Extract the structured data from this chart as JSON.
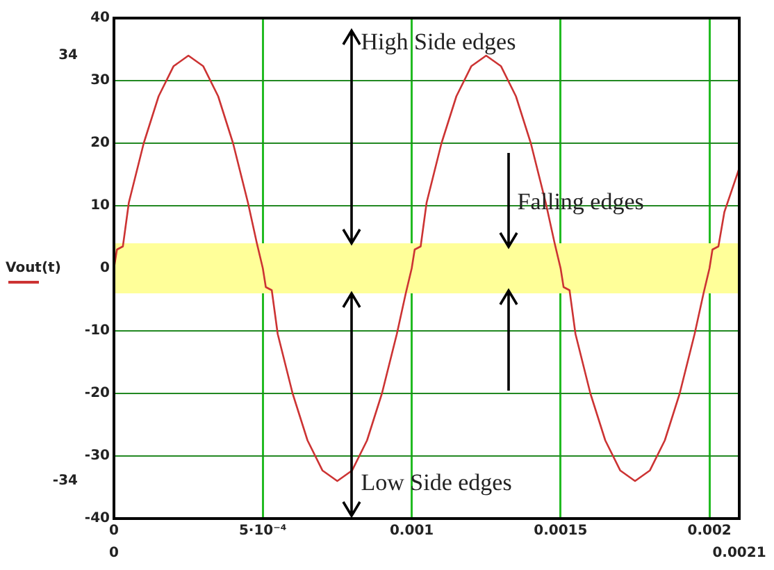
{
  "chart_data": {
    "type": "line",
    "ylabel": "Vout(t)",
    "x": [
      0,
      1e-05,
      3e-05,
      5e-05,
      0.0001,
      0.00015,
      0.0002,
      0.00025,
      0.0003,
      0.00035,
      0.0004,
      0.00045,
      0.00048,
      0.0005,
      0.00051,
      0.00053,
      0.00055,
      0.0006,
      0.00065,
      0.0007,
      0.00075,
      0.0008,
      0.00085,
      0.0009,
      0.00095,
      0.00098,
      0.001,
      0.00101,
      0.00103,
      0.00105,
      0.0011,
      0.00115,
      0.0012,
      0.00125,
      0.0013,
      0.00135,
      0.0014,
      0.00145,
      0.00148,
      0.0015,
      0.00151,
      0.00153,
      0.00155,
      0.0016,
      0.00165,
      0.0017,
      0.00175,
      0.0018,
      0.00185,
      0.0019,
      0.00195,
      0.00198,
      0.002,
      0.00201,
      0.00203,
      0.00205,
      0.0021
    ],
    "series": [
      {
        "color": "#cc3333",
        "values": [
          0,
          3,
          3.5,
          10.5,
          20,
          27.5,
          32.3,
          34,
          32.3,
          27.5,
          20,
          10.5,
          4,
          0,
          -3,
          -3.5,
          -10.5,
          -20,
          -27.5,
          -32.3,
          -34,
          -32.3,
          -27.5,
          -20,
          -10.5,
          -4,
          0,
          3,
          3.5,
          10.5,
          20,
          27.5,
          32.3,
          34,
          32.3,
          27.5,
          20,
          10.5,
          4,
          0,
          -3,
          -3.5,
          -10.5,
          -20,
          -27.5,
          -32.3,
          -34,
          -32.3,
          -27.5,
          -20,
          -10.5,
          -4,
          0,
          3,
          3.5,
          9,
          16
        ]
      }
    ],
    "xlim": [
      0,
      0.0021
    ],
    "xticks": [
      0,
      {
        "value": 0.0005,
        "label": "5·10⁻⁴"
      },
      0.001,
      0.0015,
      0.002
    ],
    "ylim": [
      -40,
      40
    ],
    "yticks": [
      -40,
      -30,
      -20,
      -10,
      0,
      10,
      20,
      30,
      40
    ],
    "grid": true,
    "legend": false,
    "marker": "none",
    "line_style": "solid",
    "bands": [
      {
        "axis": "y",
        "from": -4,
        "to": 4,
        "color": "#ffff99"
      }
    ],
    "annotations": [
      {
        "text": "High Side edges",
        "x": 0.0008,
        "y": 4
      },
      "Falling edges",
      {
        "text": "Low Side edges",
        "x": 0.0008,
        "y": -4
      },
      "34",
      "-34",
      "0",
      "0.0021"
    ]
  }
}
